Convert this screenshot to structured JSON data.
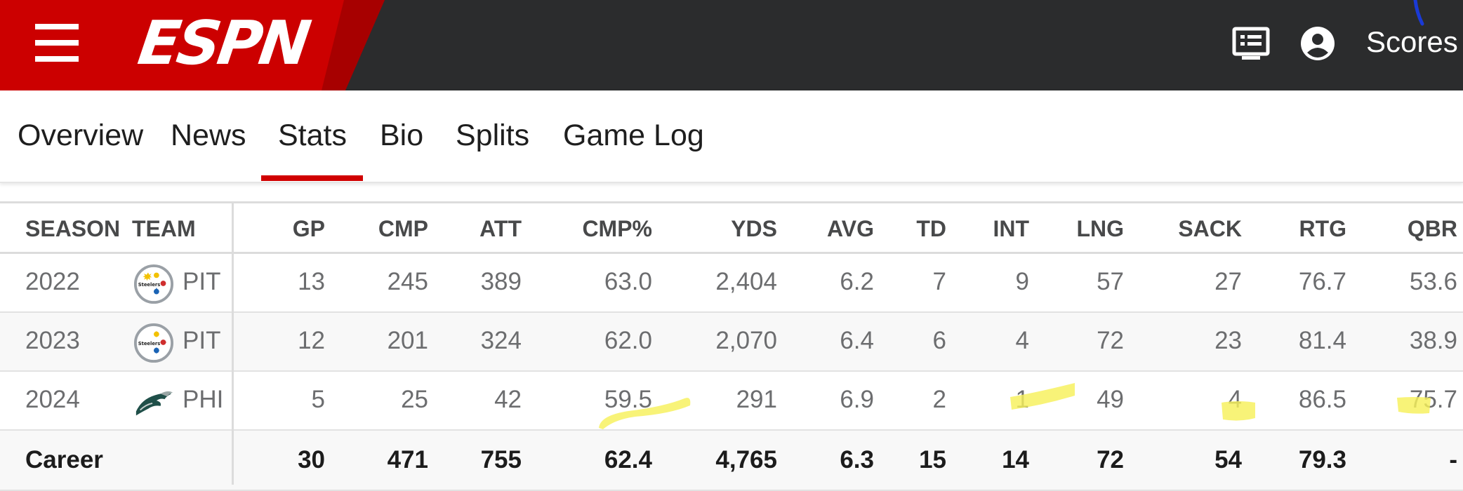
{
  "header": {
    "brand": "ESPN",
    "scores_label": "Scores",
    "brand_color": "#cc0000",
    "bar_color": "#2b2c2d",
    "icons": [
      "menu-icon",
      "news-feed-icon",
      "profile-icon"
    ]
  },
  "tabs": {
    "items": [
      "Overview",
      "News",
      "Stats",
      "Bio",
      "Splits",
      "Game Log"
    ],
    "active": "Stats",
    "active_color": "#d00000"
  },
  "stats": {
    "columns": [
      "SEASON",
      "TEAM",
      "GP",
      "CMP",
      "ATT",
      "CMP%",
      "YDS",
      "AVG",
      "TD",
      "INT",
      "LNG",
      "SACK",
      "RTG",
      "QBR"
    ],
    "rows": [
      {
        "season": "2022",
        "team": "PIT",
        "team_logo": "steelers-logo",
        "values": [
          "13",
          "245",
          "389",
          "63.0",
          "2,404",
          "6.2",
          "7",
          "9",
          "57",
          "27",
          "76.7",
          "53.6"
        ]
      },
      {
        "season": "2023",
        "team": "PIT",
        "team_logo": "steelers-logo",
        "values": [
          "12",
          "201",
          "324",
          "62.0",
          "2,070",
          "6.4",
          "6",
          "4",
          "72",
          "23",
          "81.4",
          "38.9"
        ]
      },
      {
        "season": "2024",
        "team": "PHI",
        "team_logo": "eagles-logo",
        "values": [
          "5",
          "25",
          "42",
          "59.5",
          "291",
          "6.9",
          "2",
          "1",
          "49",
          "4",
          "86.5",
          "75.7"
        ]
      }
    ],
    "career": {
      "label": "Career",
      "values": [
        "30",
        "471",
        "755",
        "62.4",
        "4,765",
        "6.3",
        "15",
        "14",
        "72",
        "54",
        "79.3",
        "-"
      ]
    },
    "link_color": "#0d5c8f",
    "highlight_color": "#f6f05a"
  }
}
